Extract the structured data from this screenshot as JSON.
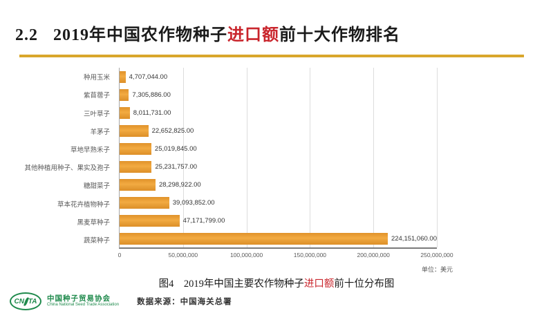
{
  "page": {
    "title": {
      "number": "2.2",
      "prefix": "2019年中国农作物种子",
      "highlight": "进口额",
      "suffix": "前十大作物排名"
    },
    "caption": {
      "prefix": "图4　2019年中国主要农作物种子",
      "highlight": "进口额",
      "suffix": "前十位分布图"
    },
    "unit_label": "单位：美元",
    "footer": {
      "logo_left": "CN",
      "logo_right": "TA",
      "org_cn": "中国种子贸易协会",
      "org_en": "China National Seed Trade Association",
      "source": "数据来源：中国海关总署"
    },
    "colors": {
      "bar": "#EBA23A",
      "accent_line": "#D9A62B",
      "highlight_red": "#C9252C",
      "logo_green": "#1F8A4C"
    }
  },
  "chart_data": {
    "type": "bar",
    "orientation": "horizontal",
    "title": "图4 2019年中国主要农作物种子进口额前十位分布图",
    "categories": [
      "种用玉米",
      "紫苜蓿子",
      "三叶草子",
      "羊茅子",
      "草地早熟禾子",
      "其他种植用种子、果实及孢子",
      "糖甜菜子",
      "草本花卉植物种子",
      "黑麦草种子",
      "蔬菜种子"
    ],
    "values": [
      4707044,
      7305886,
      8011731,
      22652825,
      25019845,
      25231757,
      28298922,
      39093852,
      47171799,
      224151060
    ],
    "value_labels": [
      "4,707,044.00",
      "7,305,886.00",
      "8,011,731.00",
      "22,652,825.00",
      "25,019,845.00",
      "25,231,757.00",
      "28,298,922.00",
      "39,093,852.00",
      "47,171,799.00",
      "224,151,060.00"
    ],
    "x_ticks": [
      "0",
      "50,000,000",
      "100,000,000",
      "150,000,000",
      "200,000,000",
      "250,000,000"
    ],
    "xlim": [
      0,
      250000000
    ],
    "unit": "美元",
    "bar_color": "#EBA23A",
    "grid": true,
    "legend": "none"
  }
}
